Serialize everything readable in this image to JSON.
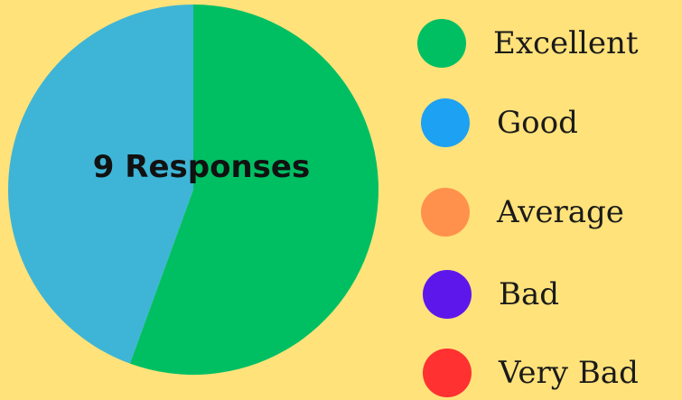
{
  "page": {
    "background": "#FFE27A"
  },
  "chart_data": {
    "type": "pie",
    "title": "",
    "center_label": "9 Responses",
    "total_responses": 9,
    "slices": [
      {
        "label": "Excellent",
        "value": 5,
        "color": "#00BF63"
      },
      {
        "label": "Good",
        "value": 4,
        "color": "#3EB5D6"
      },
      {
        "label": "Average",
        "value": 0,
        "color": "#FF914D"
      },
      {
        "label": "Bad",
        "value": 0,
        "color": "#5E17EB"
      },
      {
        "label": "Very Bad",
        "value": 0,
        "color": "#FF3131"
      }
    ],
    "legend": {
      "placement": "right",
      "items": [
        {
          "label": "Excellent",
          "color": "#00BF63"
        },
        {
          "label": "Good",
          "color": "#1DA1F2"
        },
        {
          "label": "Average",
          "color": "#FF914D"
        },
        {
          "label": "Bad",
          "color": "#5E17EB"
        },
        {
          "label": "Very Bad",
          "color": "#FF3131"
        }
      ]
    }
  }
}
